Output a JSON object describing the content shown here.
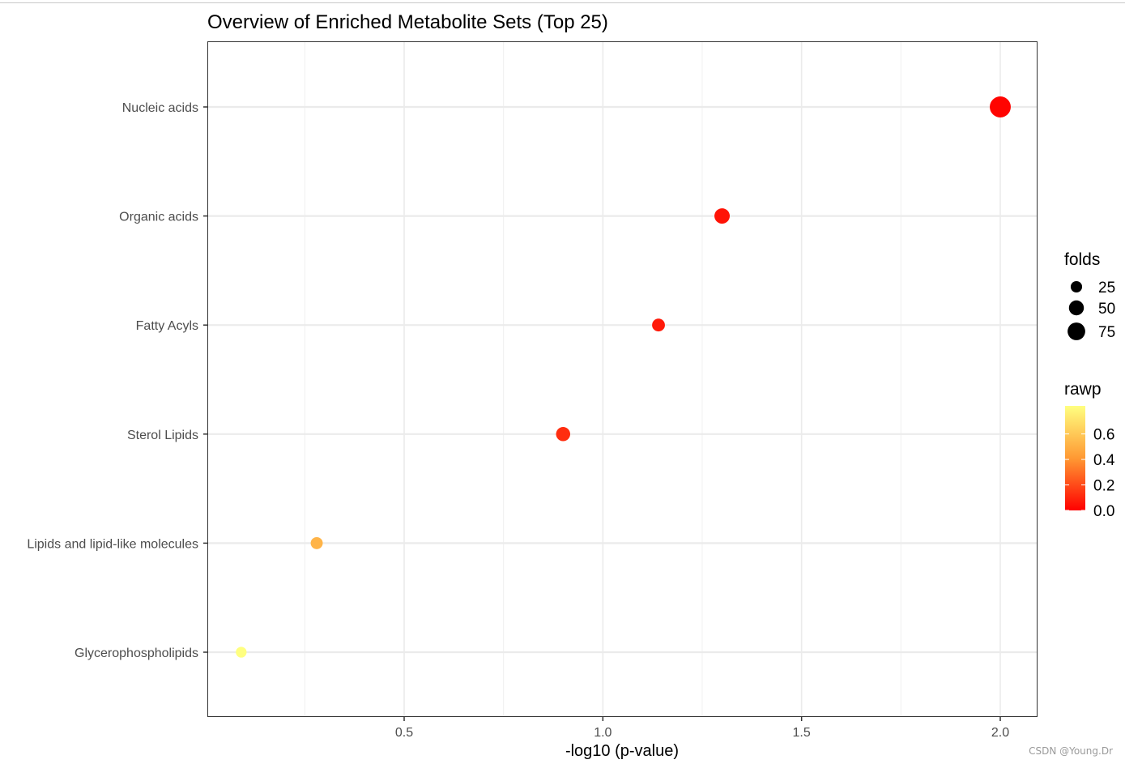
{
  "chart_data": {
    "type": "scatter",
    "title": "Overview of Enriched Metabolite Sets (Top 25)",
    "xlabel": "-log10 (p-value)",
    "ylabel": "",
    "xlim": [
      0.0,
      2.1
    ],
    "x_ticks": [
      0.5,
      1.0,
      1.5,
      2.0
    ],
    "x_tick_labels": [
      "0.5",
      "1.0",
      "1.5",
      "2.0"
    ],
    "grid": true,
    "categories": [
      "Nucleic acids",
      "Organic acids",
      "Fatty Acyls",
      "Sterol Lipids",
      "Lipids and lipid-like molecules",
      "Glycerophospholipids"
    ],
    "points": [
      {
        "label": "Nucleic acids",
        "x": 2.0,
        "folds": 90,
        "rawp": 0.01
      },
      {
        "label": "Organic acids",
        "x": 1.3,
        "folds": 38,
        "rawp": 0.05
      },
      {
        "label": "Fatty Acyls",
        "x": 1.14,
        "folds": 22,
        "rawp": 0.07
      },
      {
        "label": "Sterol Lipids",
        "x": 0.9,
        "folds": 30,
        "rawp": 0.12
      },
      {
        "label": "Lipids and lipid-like molecules",
        "x": 0.28,
        "folds": 18,
        "rawp": 0.52
      },
      {
        "label": "Glycerophospholipids",
        "x": 0.09,
        "folds": 12,
        "rawp": 0.82
      }
    ],
    "size_legend": {
      "title": "folds",
      "values": [
        25,
        50,
        75
      ],
      "labels": [
        "25",
        "50",
        "75"
      ]
    },
    "color_legend": {
      "title": "rawp",
      "values": [
        0.0,
        0.2,
        0.4,
        0.6
      ],
      "labels": [
        "0.0",
        "0.2",
        "0.4",
        "0.6"
      ],
      "range": [
        0.0,
        0.82
      ],
      "low_color": "#ff0000",
      "high_color": "#ffff80"
    },
    "legend_position": "right"
  },
  "watermark": "CSDN @Young.Dr"
}
